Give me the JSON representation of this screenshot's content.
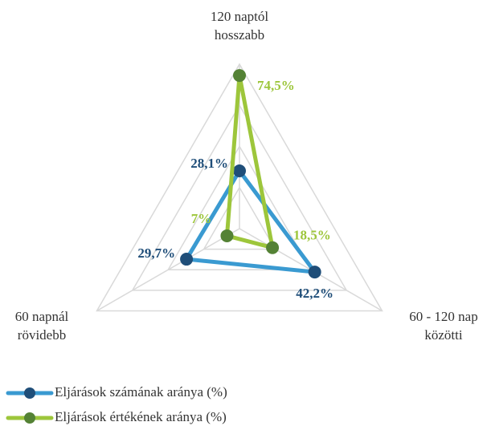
{
  "chart_data": {
    "type": "radar",
    "categories": [
      [
        "120 naptól",
        "hosszabb"
      ],
      [
        "60 - 120 nap",
        "közötti"
      ],
      [
        "60 napnál",
        "rövidebb"
      ]
    ],
    "series": [
      {
        "name": "Eljárások számának aránya (%)",
        "color": "#3a9ad1",
        "marker_color": "#1f4e79",
        "label_color": "#1f4e79",
        "values": [
          28.1,
          42.2,
          29.7
        ],
        "value_labels": [
          "28,1%",
          "42,2%",
          "29,7%"
        ]
      },
      {
        "name": "Eljárások értékének aránya (%)",
        "color": "#9dc63b",
        "marker_color": "#548235",
        "label_color": "#9dc63b",
        "values": [
          74.5,
          18.5,
          7
        ],
        "value_labels": [
          "74,5%",
          "18,5%",
          "7%"
        ]
      }
    ],
    "ylim": [
      0,
      80
    ],
    "yticks": [
      0,
      20,
      40,
      60,
      80
    ],
    "grid": true
  }
}
